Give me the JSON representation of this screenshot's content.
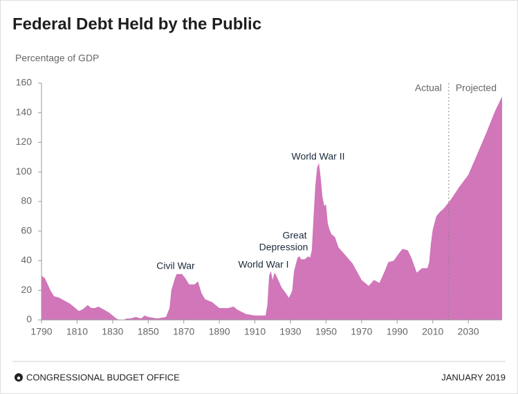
{
  "chart_data": {
    "type": "area",
    "title": "Federal Debt Held by the Public",
    "y_label": "Percentage of GDP",
    "x": [
      1790,
      1792,
      1795,
      1797,
      1800,
      1803,
      1806,
      1808,
      1811,
      1813,
      1815,
      1816,
      1818,
      1820,
      1822,
      1825,
      1828,
      1830,
      1832,
      1834,
      1836,
      1838,
      1840,
      1843,
      1846,
      1848,
      1850,
      1855,
      1860,
      1862,
      1863,
      1865,
      1866,
      1869,
      1871,
      1873,
      1876,
      1878,
      1880,
      1882,
      1886,
      1890,
      1895,
      1898,
      1900,
      1905,
      1910,
      1915,
      1916,
      1917,
      1918,
      1919,
      1920,
      1921,
      1922,
      1925,
      1928,
      1929,
      1930,
      1931,
      1932,
      1934,
      1935,
      1936,
      1938,
      1940,
      1941,
      1942,
      1943,
      1944,
      1945,
      1946,
      1947,
      1948,
      1949,
      1950,
      1951,
      1952,
      1953,
      1955,
      1957,
      1960,
      1965,
      1970,
      1974,
      1977,
      1980,
      1983,
      1985,
      1988,
      1991,
      1993,
      1996,
      1998,
      2001,
      2004,
      2007,
      2008,
      2009,
      2010,
      2012,
      2014,
      2016,
      2018,
      2020,
      2025,
      2030,
      2035,
      2040,
      2045,
      2049
    ],
    "series": [
      {
        "color": "#d076b9",
        "values": [
          30,
          28,
          20,
          16,
          15,
          13,
          11,
          9,
          6,
          7,
          9,
          10,
          8,
          8,
          9,
          7,
          5,
          3,
          1,
          0,
          0,
          1,
          1,
          2,
          1,
          3,
          2,
          1,
          2,
          8,
          20,
          28,
          31,
          31,
          28,
          24,
          24,
          26,
          18,
          14,
          12,
          8,
          8,
          9,
          7,
          4,
          3,
          3,
          3,
          10,
          30,
          33,
          27,
          32,
          30,
          22,
          17,
          15,
          17,
          20,
          33,
          42,
          43,
          41,
          41,
          43,
          42,
          47,
          70,
          91,
          103,
          106,
          96,
          83,
          77,
          78,
          65,
          61,
          58,
          56,
          49,
          45,
          38,
          27,
          23,
          27,
          25,
          33,
          39,
          40,
          45,
          48,
          47,
          42,
          32,
          35,
          35,
          39,
          52,
          61,
          70,
          73,
          75,
          78,
          81,
          90,
          98,
          112,
          126,
          141,
          151
        ]
      }
    ],
    "xlim": [
      1790,
      2049
    ],
    "ylim": [
      0,
      160
    ],
    "xticks": [
      1790,
      1810,
      1830,
      1850,
      1870,
      1890,
      1910,
      1930,
      1950,
      1970,
      1990,
      2010,
      2030
    ],
    "yticks": [
      0,
      20,
      40,
      60,
      80,
      100,
      120,
      140,
      160
    ],
    "annotations": [
      "Civil War",
      "World War I",
      "Great",
      "Depression",
      "World War II"
    ],
    "divider": {
      "x": 2019,
      "left": "Actual",
      "right": "Projected"
    },
    "footer": {
      "source": "CONGRESSIONAL BUDGET OFFICE",
      "date": "JANUARY 2019"
    }
  }
}
